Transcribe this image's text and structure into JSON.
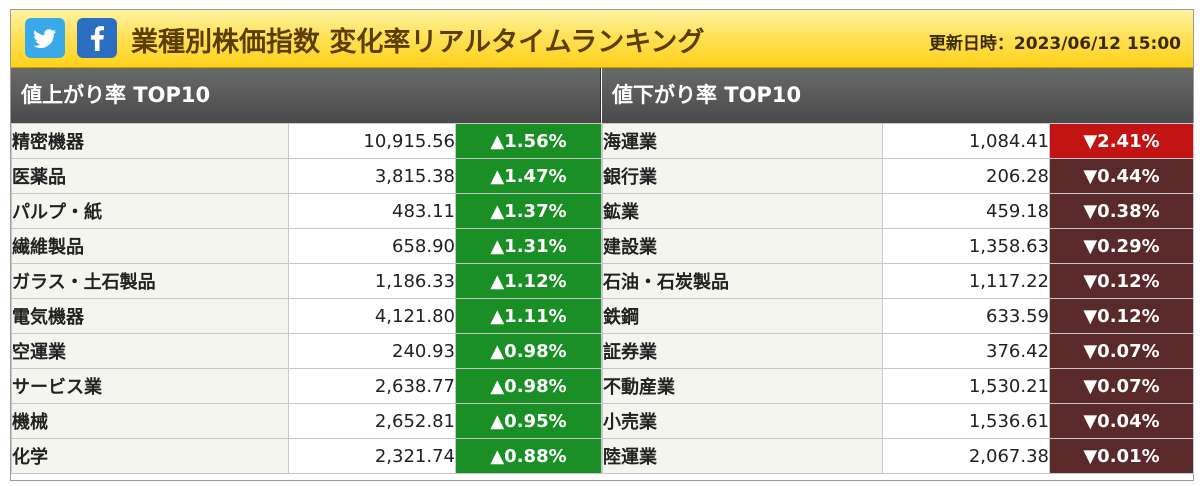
{
  "header": {
    "title": "業種別株価指数 変化率リアルタイムランキング",
    "updated": "更新日時：2023/06/12 15:00",
    "share_icons": [
      "twitter-icon",
      "facebook-icon"
    ]
  },
  "gainers": {
    "heading": "値上がり率 TOP10",
    "rows": [
      {
        "name": "精密機器",
        "value": "10,915.56",
        "change": "▲1.56%"
      },
      {
        "name": "医薬品",
        "value": "3,815.38",
        "change": "▲1.47%"
      },
      {
        "name": "パルプ・紙",
        "value": "483.11",
        "change": "▲1.37%"
      },
      {
        "name": "繊維製品",
        "value": "658.90",
        "change": "▲1.31%"
      },
      {
        "name": "ガラス・土石製品",
        "value": "1,186.33",
        "change": "▲1.12%"
      },
      {
        "name": "電気機器",
        "value": "4,121.80",
        "change": "▲1.11%"
      },
      {
        "name": "空運業",
        "value": "240.93",
        "change": "▲0.98%"
      },
      {
        "name": "サービス業",
        "value": "2,638.77",
        "change": "▲0.98%"
      },
      {
        "name": "機械",
        "value": "2,652.81",
        "change": "▲0.95%"
      },
      {
        "name": "化学",
        "value": "2,321.74",
        "change": "▲0.88%"
      }
    ]
  },
  "losers": {
    "heading": "値下がり率 TOP10",
    "rows": [
      {
        "name": "海運業",
        "value": "1,084.41",
        "change": "▼2.41%"
      },
      {
        "name": "銀行業",
        "value": "206.28",
        "change": "▼0.44%"
      },
      {
        "name": "鉱業",
        "value": "459.18",
        "change": "▼0.38%"
      },
      {
        "name": "建設業",
        "value": "1,358.63",
        "change": "▼0.29%"
      },
      {
        "name": "石油・石炭製品",
        "value": "1,117.22",
        "change": "▼0.12%"
      },
      {
        "name": "鉄鋼",
        "value": "633.59",
        "change": "▼0.12%"
      },
      {
        "name": "証券業",
        "value": "376.42",
        "change": "▼0.07%"
      },
      {
        "name": "不動産業",
        "value": "1,530.21",
        "change": "▼0.07%"
      },
      {
        "name": "小売業",
        "value": "1,536.61",
        "change": "▼0.04%"
      },
      {
        "name": "陸運業",
        "value": "2,067.38",
        "change": "▼0.01%"
      }
    ]
  },
  "colors": {
    "up": "#1a8f26",
    "down": "#5a2a2a",
    "down_top": "#c31414",
    "header_bg": "#ffd21a",
    "panel_head_bg": "#555555"
  }
}
